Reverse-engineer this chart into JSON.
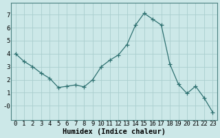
{
  "x": [
    0,
    1,
    2,
    3,
    4,
    5,
    6,
    7,
    8,
    9,
    10,
    11,
    12,
    13,
    14,
    15,
    16,
    17,
    18,
    19,
    20,
    21,
    22,
    23
  ],
  "y": [
    4.0,
    3.4,
    3.0,
    2.5,
    2.1,
    1.4,
    1.5,
    1.6,
    1.45,
    2.0,
    3.0,
    3.5,
    3.9,
    4.7,
    6.2,
    7.1,
    6.65,
    6.2,
    3.2,
    1.65,
    0.95,
    1.5,
    0.6,
    -0.5
  ],
  "line_color": "#2d7070",
  "marker": "+",
  "marker_size": 4,
  "bg_color": "#cce8e8",
  "grid_color": "#aacece",
  "xlabel": "Humidex (Indice chaleur)",
  "xlim": [
    -0.5,
    23.5
  ],
  "ylim": [
    -1.1,
    7.9
  ],
  "yticks": [
    0,
    1,
    2,
    3,
    4,
    5,
    6,
    7
  ],
  "ytick_labels": [
    "-0",
    "1",
    "2",
    "3",
    "4",
    "5",
    "6",
    "7"
  ],
  "xticks": [
    0,
    1,
    2,
    3,
    4,
    5,
    6,
    7,
    8,
    9,
    10,
    11,
    12,
    13,
    14,
    15,
    16,
    17,
    18,
    19,
    20,
    21,
    22,
    23
  ],
  "tick_fontsize": 6.5,
  "label_fontsize": 7.5,
  "spine_color": "#4a8080"
}
